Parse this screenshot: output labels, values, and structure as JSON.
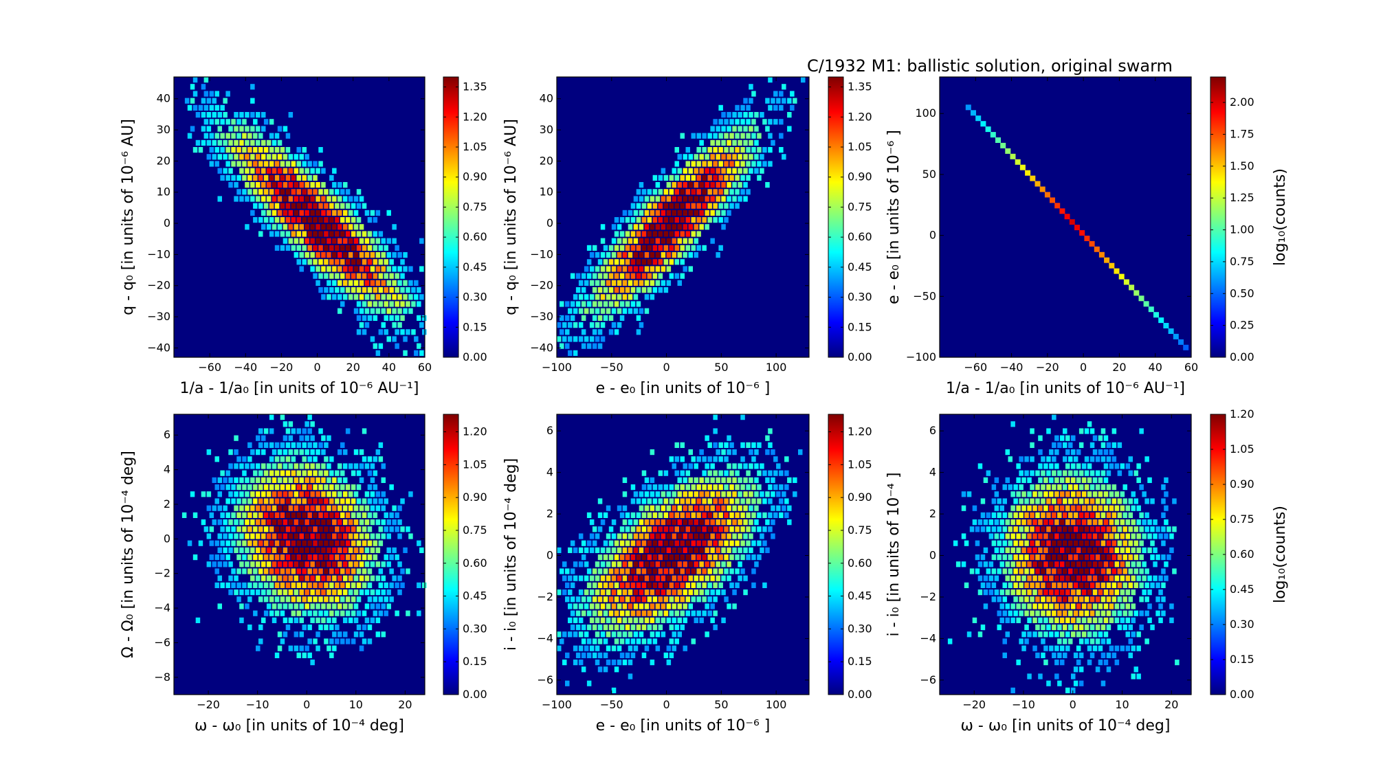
{
  "figure_title": "C/1932 M1:  ballistic solution, original swarm",
  "colormap": [
    "#00007f",
    "#0000ff",
    "#007fff",
    "#00ffff",
    "#7fff7f",
    "#ffff00",
    "#ff7f00",
    "#ff0000",
    "#7f0000"
  ],
  "plot_background": "#00007f",
  "chart_data": [
    {
      "type": "heatmap",
      "title": "",
      "xlabel": "1/a - 1/a₀ [in units of 10⁻⁶ AU⁻¹]",
      "ylabel": "q - q₀ [in units of 10⁻⁶ AU]",
      "xlim": [
        -80,
        60
      ],
      "ylim": [
        -43,
        47
      ],
      "xticks": [
        -60,
        -40,
        -20,
        0,
        20,
        40,
        60
      ],
      "yticks": [
        -40,
        -30,
        -20,
        -10,
        0,
        10,
        20,
        30,
        40
      ],
      "distribution": {
        "mean_x": 0,
        "mean_y": 0,
        "sd_x": 25,
        "sd_y": 15,
        "correlation": -0.88
      },
      "colorbar": {
        "label": "",
        "range": [
          0,
          1.4
        ],
        "ticks": [
          "0.00",
          "0.15",
          "0.30",
          "0.45",
          "0.60",
          "0.75",
          "0.90",
          "1.05",
          "1.20",
          "1.35"
        ]
      }
    },
    {
      "type": "heatmap",
      "title": "",
      "xlabel": "e - e₀ [in units of 10⁻⁶ ]",
      "ylabel": "q - q₀ [in units of 10⁻⁶ AU]",
      "xlim": [
        -100,
        130
      ],
      "ylim": [
        -43,
        47
      ],
      "xticks": [
        -100,
        -50,
        0,
        50,
        100
      ],
      "yticks": [
        -40,
        -30,
        -20,
        -10,
        0,
        10,
        20,
        30,
        40
      ],
      "distribution": {
        "mean_x": 5,
        "mean_y": 0,
        "sd_x": 38,
        "sd_y": 15,
        "correlation": 0.88
      },
      "colorbar": {
        "label": "",
        "range": [
          0,
          1.4
        ],
        "ticks": [
          "0.00",
          "0.15",
          "0.30",
          "0.45",
          "0.60",
          "0.75",
          "0.90",
          "1.05",
          "1.20",
          "1.35"
        ]
      }
    },
    {
      "type": "heatmap",
      "title": "",
      "xlabel": "1/a - 1/a₀ [in units of 10⁻⁶ AU⁻¹]",
      "ylabel": "e - e₀ [in units of 10⁻⁶ ]",
      "xlim": [
        -80,
        60
      ],
      "ylim": [
        -100,
        130
      ],
      "xticks": [
        -60,
        -40,
        -20,
        0,
        20,
        40,
        60
      ],
      "yticks": [
        -100,
        -50,
        0,
        50,
        100
      ],
      "line": {
        "from": [
          -64,
          105
        ],
        "to": [
          57,
          -92
        ]
      },
      "colorbar": {
        "label": "log₁₀(counts)",
        "range": [
          0,
          2.2
        ],
        "ticks": [
          "0.00",
          "0.25",
          "0.50",
          "0.75",
          "1.00",
          "1.25",
          "1.50",
          "1.75",
          "2.00"
        ]
      }
    },
    {
      "type": "heatmap",
      "title": "",
      "xlabel": "ω - ω₀ [in units of 10⁻⁴ deg]",
      "ylabel": "Ω - Ω₀ [in units of 10⁻⁴ deg]",
      "xlim": [
        -27,
        24
      ],
      "ylim": [
        -9,
        7.2
      ],
      "xticks": [
        -20,
        -10,
        0,
        10,
        20
      ],
      "yticks": [
        -8,
        -6,
        -4,
        -2,
        0,
        2,
        4,
        6
      ],
      "distribution": {
        "mean_x": 0,
        "mean_y": 0,
        "sd_x": 7,
        "sd_y": 2.2,
        "correlation": -0.15
      },
      "colorbar": {
        "label": "",
        "range": [
          0,
          1.28
        ],
        "ticks": [
          "0.00",
          "0.15",
          "0.30",
          "0.45",
          "0.60",
          "0.75",
          "0.90",
          "1.05",
          "1.20"
        ]
      }
    },
    {
      "type": "heatmap",
      "title": "",
      "xlabel": "e - e₀ [in units of 10⁻⁶ ]",
      "ylabel": "i - i₀ [in units of 10⁻⁴ deg]",
      "xlim": [
        -100,
        130
      ],
      "ylim": [
        -6.7,
        6.8
      ],
      "xticks": [
        -100,
        -50,
        0,
        50,
        100
      ],
      "yticks": [
        -6,
        -4,
        -2,
        0,
        2,
        4,
        6
      ],
      "distribution": {
        "mean_x": 5,
        "mean_y": 0,
        "sd_x": 38,
        "sd_y": 1.9,
        "correlation": 0.6
      },
      "colorbar": {
        "label": "",
        "range": [
          0,
          1.28
        ],
        "ticks": [
          "0.00",
          "0.15",
          "0.30",
          "0.45",
          "0.60",
          "0.75",
          "0.90",
          "1.05",
          "1.20"
        ]
      }
    },
    {
      "type": "heatmap",
      "title": "",
      "xlabel": "ω - ω₀ [in units of 10⁻⁴ deg]",
      "ylabel": "i - i₀ [in units of 10⁻⁴ ]",
      "xlim": [
        -27,
        24
      ],
      "ylim": [
        -6.7,
        6.8
      ],
      "xticks": [
        -20,
        -10,
        0,
        10,
        20
      ],
      "yticks": [
        -6,
        -4,
        -2,
        0,
        2,
        4,
        6
      ],
      "distribution": {
        "mean_x": 0,
        "mean_y": 0,
        "sd_x": 7,
        "sd_y": 1.9,
        "correlation": -0.05
      },
      "colorbar": {
        "label": "log₁₀(counts)",
        "range": [
          0,
          1.2
        ],
        "ticks": [
          "0.00",
          "0.15",
          "0.30",
          "0.45",
          "0.60",
          "0.75",
          "0.90",
          "1.05",
          "1.20"
        ]
      }
    }
  ]
}
